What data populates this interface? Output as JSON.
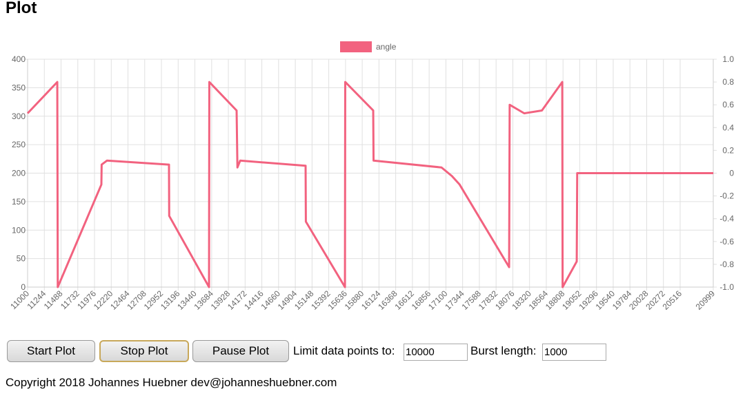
{
  "header": {
    "title": "Plot"
  },
  "chart_data": {
    "type": "line",
    "x": [
      11000,
      11433,
      11440,
      12076,
      12080,
      12157,
      13062,
      13065,
      13646,
      13650,
      14048,
      14060,
      14100,
      15054,
      15058,
      15628,
      15632,
      16040,
      16045,
      17036,
      17187,
      17300,
      18022,
      18030,
      18243,
      18500,
      18797,
      18802,
      19008,
      19015,
      20999
    ],
    "series": [
      {
        "name": "angle",
        "color": "#f2627f",
        "values": [
          305,
          360,
          0,
          180,
          215,
          222,
          215,
          125,
          0,
          360,
          310,
          210,
          222,
          213,
          115,
          0,
          360,
          310,
          222,
          210,
          195,
          180,
          35,
          320,
          305,
          310,
          360,
          0,
          45,
          200,
          200
        ]
      }
    ],
    "xlim": [
      11000,
      20999
    ],
    "xticks": [
      11000,
      11244,
      11488,
      11732,
      11976,
      12220,
      12464,
      12708,
      12952,
      13196,
      13440,
      13684,
      13928,
      14172,
      14416,
      14660,
      14904,
      15148,
      15392,
      15636,
      15880,
      16124,
      16368,
      16612,
      16856,
      17100,
      17344,
      17588,
      17832,
      18076,
      18320,
      18564,
      18808,
      19052,
      19296,
      19540,
      19784,
      20028,
      20272,
      20516,
      20999
    ],
    "ylim": [
      0,
      400
    ],
    "yticks": [
      0,
      50,
      100,
      150,
      200,
      250,
      300,
      350,
      400
    ],
    "y2lim": [
      -1,
      1
    ],
    "y2ticks": [
      {
        "value": -1,
        "label": "-1.0"
      },
      -0.8,
      -0.6,
      -0.4,
      -0.2,
      0,
      0.2,
      0.4,
      0.6,
      0.8,
      {
        "value": 1,
        "label": "1.0"
      }
    ],
    "grid": true
  },
  "controls": {
    "buttons": [
      "Start Plot",
      "Stop Plot",
      "Pause Plot"
    ],
    "limit_label": "Limit data points to:",
    "limit_value": "10000",
    "burst_label": "Burst length:",
    "burst_value": "1000"
  },
  "footer": {
    "text": "Copyright 2018 Johannes Huebner dev@johanneshuebner.com"
  }
}
